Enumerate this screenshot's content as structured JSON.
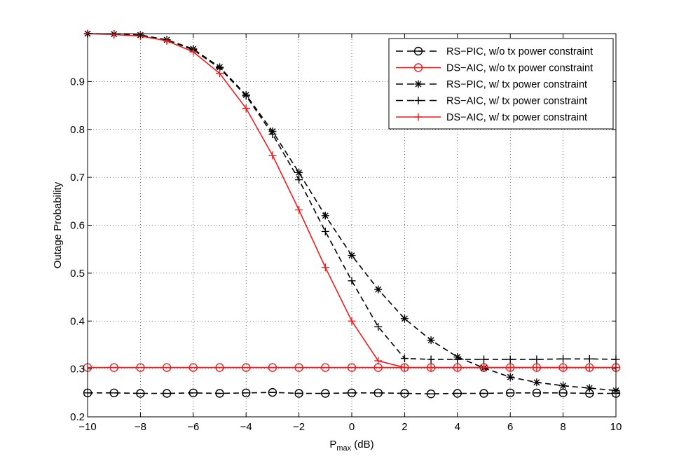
{
  "chart_data": {
    "type": "line",
    "title": "",
    "xlabel": {
      "main": "P",
      "sub": "max",
      "unit": " (dB)"
    },
    "ylabel": "Outage Probability",
    "xlim": [
      -10,
      10
    ],
    "ylim": [
      0.2,
      1.0
    ],
    "xticks": [
      -10,
      -8,
      -6,
      -4,
      -2,
      0,
      2,
      4,
      6,
      8,
      10
    ],
    "xtick_labels": [
      "−10",
      "−8",
      "−6",
      "−4",
      "−2",
      "0",
      "2",
      "4",
      "6",
      "8",
      "10"
    ],
    "yticks": [
      0.2,
      0.3,
      0.4,
      0.5,
      0.6,
      0.7,
      0.8,
      0.9
    ],
    "ytick_labels": [
      "0.2",
      "0.3",
      "0.4",
      "0.5",
      "0.6",
      "0.7",
      "0.8",
      "0.9"
    ],
    "grid": true,
    "legend_position": "top-right",
    "x": [
      -10,
      -9,
      -8,
      -7,
      -6,
      -5,
      -4,
      -3,
      -2,
      -1,
      0,
      1,
      2,
      3,
      4,
      5,
      6,
      7,
      8,
      9,
      10
    ],
    "series": [
      {
        "name": "RS−PIC, w/o tx power constraint",
        "color": "#000000",
        "dash": "dashed",
        "marker": "circle-bar",
        "values": [
          0.25,
          0.25,
          0.249,
          0.249,
          0.25,
          0.249,
          0.25,
          0.251,
          0.249,
          0.249,
          0.25,
          0.25,
          0.249,
          0.248,
          0.249,
          0.249,
          0.25,
          0.25,
          0.25,
          0.249,
          0.249
        ]
      },
      {
        "name": "DS−AIC, w/o tx power constraint",
        "color": "#ee1c1c",
        "dash": "solid",
        "marker": "circle",
        "values": [
          0.303,
          0.303,
          0.303,
          0.303,
          0.303,
          0.303,
          0.303,
          0.303,
          0.303,
          0.303,
          0.303,
          0.303,
          0.303,
          0.303,
          0.303,
          0.303,
          0.303,
          0.303,
          0.303,
          0.303,
          0.303
        ]
      },
      {
        "name": "RS−PIC, w/ tx power constraint",
        "color": "#000000",
        "dash": "dashed",
        "marker": "star",
        "values": [
          1.0,
          0.999,
          0.997,
          0.987,
          0.968,
          0.93,
          0.872,
          0.796,
          0.71,
          0.62,
          0.537,
          0.466,
          0.405,
          0.36,
          0.325,
          0.302,
          0.283,
          0.272,
          0.265,
          0.26,
          0.255
        ]
      },
      {
        "name": "RS−AIC, w/ tx power constraint",
        "color": "#000000",
        "dash": "dashed",
        "marker": "plus",
        "values": [
          1.0,
          0.999,
          0.997,
          0.987,
          0.966,
          0.928,
          0.87,
          0.79,
          0.695,
          0.587,
          0.484,
          0.388,
          0.322,
          0.32,
          0.32,
          0.32,
          0.32,
          0.32,
          0.321,
          0.321,
          0.32
        ]
      },
      {
        "name": "DS−AIC, w/ tx power constraint",
        "color": "#ee1c1c",
        "dash": "solid",
        "marker": "plus",
        "values": [
          1.0,
          0.998,
          0.995,
          0.985,
          0.962,
          0.917,
          0.844,
          0.746,
          0.632,
          0.512,
          0.4,
          0.317,
          0.303,
          0.303,
          0.303,
          0.303,
          0.303,
          0.303,
          0.303,
          0.303,
          0.303
        ]
      }
    ]
  }
}
